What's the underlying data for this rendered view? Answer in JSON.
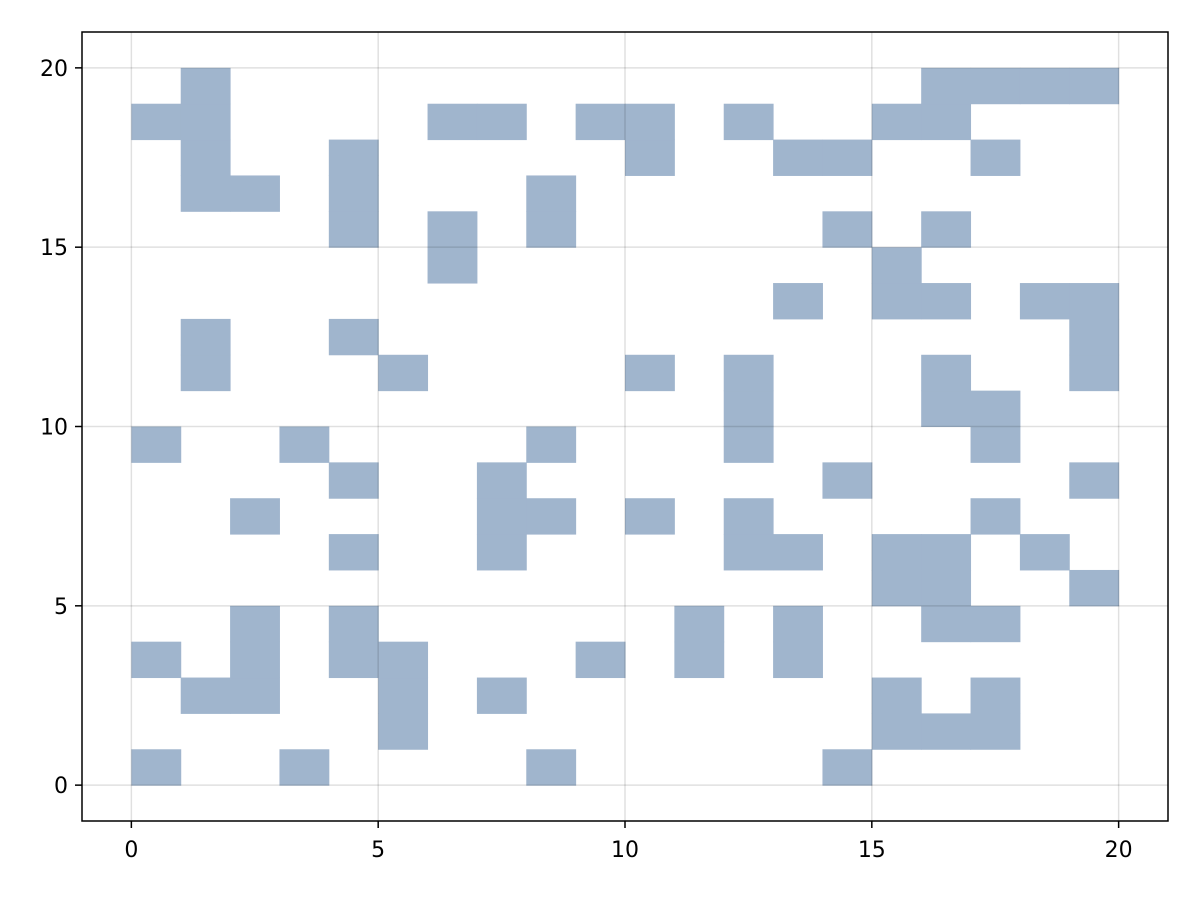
{
  "chart_data": {
    "type": "heatmap",
    "title": "",
    "xlabel": "",
    "ylabel": "",
    "xlim": [
      -1,
      21
    ],
    "ylim": [
      -1,
      21
    ],
    "x_ticks": [
      "0",
      "5",
      "10",
      "15",
      "20"
    ],
    "y_ticks": [
      "0",
      "5",
      "10",
      "15",
      "20"
    ],
    "grid": true,
    "cell_color": "#a0b5cd",
    "cells": [
      [
        0,
        0
      ],
      [
        3,
        0
      ],
      [
        8,
        0
      ],
      [
        14,
        0
      ],
      [
        5,
        1
      ],
      [
        15,
        1
      ],
      [
        16,
        1
      ],
      [
        17,
        1
      ],
      [
        1,
        2
      ],
      [
        2,
        2
      ],
      [
        5,
        2
      ],
      [
        7,
        2
      ],
      [
        15,
        2
      ],
      [
        17,
        2
      ],
      [
        0,
        3
      ],
      [
        2,
        3
      ],
      [
        4,
        3
      ],
      [
        5,
        3
      ],
      [
        9,
        3
      ],
      [
        11,
        3
      ],
      [
        13,
        3
      ],
      [
        2,
        4
      ],
      [
        4,
        4
      ],
      [
        11,
        4
      ],
      [
        13,
        4
      ],
      [
        16,
        4
      ],
      [
        17,
        4
      ],
      [
        15,
        5
      ],
      [
        16,
        5
      ],
      [
        19,
        5
      ],
      [
        4,
        6
      ],
      [
        7,
        6
      ],
      [
        12,
        6
      ],
      [
        13,
        6
      ],
      [
        15,
        6
      ],
      [
        16,
        6
      ],
      [
        18,
        6
      ],
      [
        2,
        7
      ],
      [
        7,
        7
      ],
      [
        8,
        7
      ],
      [
        10,
        7
      ],
      [
        12,
        7
      ],
      [
        17,
        7
      ],
      [
        4,
        8
      ],
      [
        7,
        8
      ],
      [
        14,
        8
      ],
      [
        19,
        8
      ],
      [
        0,
        9
      ],
      [
        3,
        9
      ],
      [
        8,
        9
      ],
      [
        12,
        9
      ],
      [
        17,
        9
      ],
      [
        12,
        10
      ],
      [
        16,
        10
      ],
      [
        17,
        10
      ],
      [
        1,
        11
      ],
      [
        5,
        11
      ],
      [
        10,
        11
      ],
      [
        12,
        11
      ],
      [
        16,
        11
      ],
      [
        19,
        11
      ],
      [
        1,
        12
      ],
      [
        4,
        12
      ],
      [
        19,
        12
      ],
      [
        13,
        13
      ],
      [
        15,
        13
      ],
      [
        16,
        13
      ],
      [
        18,
        13
      ],
      [
        19,
        13
      ],
      [
        6,
        14
      ],
      [
        15,
        14
      ],
      [
        4,
        15
      ],
      [
        6,
        15
      ],
      [
        8,
        15
      ],
      [
        14,
        15
      ],
      [
        16,
        15
      ],
      [
        1,
        16
      ],
      [
        2,
        16
      ],
      [
        4,
        16
      ],
      [
        8,
        16
      ],
      [
        1,
        17
      ],
      [
        4,
        17
      ],
      [
        10,
        17
      ],
      [
        13,
        17
      ],
      [
        14,
        17
      ],
      [
        17,
        17
      ],
      [
        0,
        18
      ],
      [
        1,
        18
      ],
      [
        6,
        18
      ],
      [
        7,
        18
      ],
      [
        9,
        18
      ],
      [
        10,
        18
      ],
      [
        12,
        18
      ],
      [
        15,
        18
      ],
      [
        16,
        18
      ],
      [
        1,
        19
      ],
      [
        16,
        19
      ],
      [
        17,
        19
      ],
      [
        18,
        19
      ],
      [
        19,
        19
      ]
    ]
  }
}
